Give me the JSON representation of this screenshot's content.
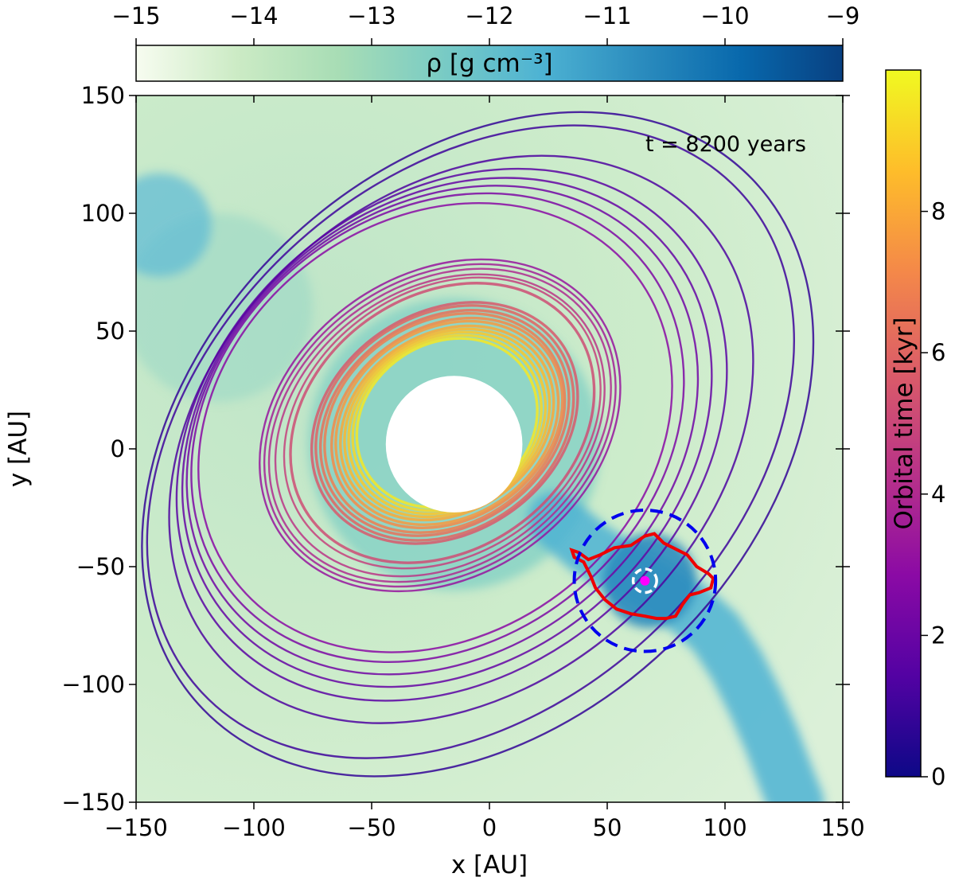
{
  "chart_data": {
    "type": "heatmap",
    "title": "",
    "xlabel": "x [AU]",
    "ylabel": "y [AU]",
    "xlim": [
      -150,
      150
    ],
    "ylim": [
      -150,
      150
    ],
    "x_ticks": [
      -150,
      -100,
      -50,
      0,
      50,
      100,
      150
    ],
    "y_ticks": [
      -150,
      -100,
      -50,
      0,
      50,
      100,
      150
    ],
    "x_tick_labels": [
      "−150",
      "−100",
      "−50",
      "0",
      "50",
      "100",
      "150"
    ],
    "y_tick_labels": [
      "−150",
      "−100",
      "−50",
      "0",
      "50",
      "100",
      "150"
    ],
    "annotation": "t = 8200 years",
    "density_colorbar": {
      "label": "ρ [g cm⁻³]",
      "range": [
        -15,
        -9
      ],
      "ticks": [
        -15,
        -14,
        -13,
        -12,
        -11,
        -10,
        -9
      ],
      "tick_labels": [
        "−15",
        "−14",
        "−13",
        "−12",
        "−11",
        "−10",
        "−9"
      ],
      "orientation": "horizontal, top",
      "colormap": [
        "#f7fcf0",
        "#ccebc5",
        "#a8ddb5",
        "#7bccc4",
        "#4eb3d3",
        "#2b8cbe",
        "#0868ac",
        "#084081"
      ]
    },
    "time_colorbar": {
      "label": "Orbital time [kyr]",
      "range": [
        0,
        10
      ],
      "ticks": [
        0,
        2,
        4,
        6,
        8
      ],
      "tick_labels": [
        "0",
        "2",
        "4",
        "6",
        "8"
      ],
      "orientation": "vertical, right",
      "colormap": [
        "#0d0887",
        "#5302a3",
        "#8b0aa5",
        "#b83289",
        "#db5c68",
        "#f48849",
        "#febd2a",
        "#f0f921"
      ]
    },
    "orbit_trajectory": {
      "color_by": "orbital time",
      "segments": [
        {
          "t_kyr": 0.8,
          "cx": -5,
          "cy": 2,
          "a": 162,
          "b": 118,
          "tilt_deg": -44
        },
        {
          "t_kyr": 1.0,
          "cx": -8,
          "cy": 3,
          "a": 156,
          "b": 112,
          "tilt_deg": -43
        },
        {
          "t_kyr": 1.3,
          "cx": -12,
          "cy": 4,
          "a": 138,
          "b": 104,
          "tilt_deg": -42
        },
        {
          "t_kyr": 1.6,
          "cx": -16,
          "cy": 6,
          "a": 128,
          "b": 100,
          "tilt_deg": -41
        },
        {
          "t_kyr": 1.9,
          "cx": -18,
          "cy": 7,
          "a": 122,
          "b": 97,
          "tilt_deg": -40
        },
        {
          "t_kyr": 2.2,
          "cx": -20,
          "cy": 8,
          "a": 117,
          "b": 94,
          "tilt_deg": -39
        },
        {
          "t_kyr": 2.5,
          "cx": -22,
          "cy": 9,
          "a": 112,
          "b": 91,
          "tilt_deg": -38
        },
        {
          "t_kyr": 2.8,
          "cx": -23,
          "cy": 9,
          "a": 107,
          "b": 88,
          "tilt_deg": -37
        },
        {
          "t_kyr": 3.2,
          "cx": -21,
          "cy": 10,
          "a": 82,
          "b": 64,
          "tilt_deg": -35
        },
        {
          "t_kyr": 3.6,
          "cx": -21,
          "cy": 10,
          "a": 80,
          "b": 62,
          "tilt_deg": -35
        },
        {
          "t_kyr": 4.0,
          "cx": -21,
          "cy": 10,
          "a": 78,
          "b": 60,
          "tilt_deg": -35
        },
        {
          "t_kyr": 4.4,
          "cx": -21,
          "cy": 10,
          "a": 75,
          "b": 58,
          "tilt_deg": -35
        },
        {
          "t_kyr": 4.8,
          "cx": -20,
          "cy": 11,
          "a": 72,
          "b": 56,
          "tilt_deg": -35
        },
        {
          "t_kyr": 5.2,
          "cx": -20,
          "cy": 11,
          "a": 69,
          "b": 54,
          "tilt_deg": -35
        },
        {
          "t_kyr": 5.6,
          "cx": -19,
          "cy": 11,
          "a": 60,
          "b": 47,
          "tilt_deg": -33
        },
        {
          "t_kyr": 6.0,
          "cx": -19,
          "cy": 11,
          "a": 58,
          "b": 46,
          "tilt_deg": -33
        },
        {
          "t_kyr": 6.4,
          "cx": -19,
          "cy": 11,
          "a": 56,
          "b": 44,
          "tilt_deg": -33
        },
        {
          "t_kyr": 6.8,
          "cx": -19,
          "cy": 11,
          "a": 54,
          "b": 43,
          "tilt_deg": -33
        },
        {
          "t_kyr": 7.2,
          "cx": -18,
          "cy": 11,
          "a": 52,
          "b": 41,
          "tilt_deg": -33
        },
        {
          "t_kyr": 7.6,
          "cx": -18,
          "cy": 11,
          "a": 50,
          "b": 40,
          "tilt_deg": -33
        },
        {
          "t_kyr": 8.0,
          "cx": -18,
          "cy": 11,
          "a": 48,
          "b": 38,
          "tilt_deg": -33
        },
        {
          "t_kyr": 8.4,
          "cx": -18,
          "cy": 11,
          "a": 46,
          "b": 37,
          "tilt_deg": -33
        },
        {
          "t_kyr": 8.8,
          "cx": -18,
          "cy": 11,
          "a": 44,
          "b": 36,
          "tilt_deg": -33
        },
        {
          "t_kyr": 9.2,
          "cx": -18,
          "cy": 11,
          "a": 42,
          "b": 35,
          "tilt_deg": -33
        },
        {
          "t_kyr": 9.6,
          "cx": -18,
          "cy": 11,
          "a": 40,
          "b": 34,
          "tilt_deg": -33
        }
      ]
    },
    "central_hole": {
      "x": -15,
      "y": 2,
      "r": 29
    },
    "companion": {
      "x": 66,
      "y": -56,
      "color": "#ff00ff"
    },
    "hill_radius_circle": {
      "x": 66,
      "y": -56,
      "r": 30,
      "color": "#0000ee",
      "style": "dashed"
    },
    "inner_circle": {
      "x": 66,
      "y": -56,
      "r": 5,
      "color": "#ffffff",
      "style": "dashed"
    },
    "density_contour": {
      "color": "#ee0000",
      "points": [
        [
          35,
          -43
        ],
        [
          38,
          -44
        ],
        [
          42,
          -47
        ],
        [
          47,
          -45
        ],
        [
          53,
          -42
        ],
        [
          60,
          -41
        ],
        [
          66,
          -37
        ],
        [
          70,
          -36
        ],
        [
          74,
          -40
        ],
        [
          78,
          -42
        ],
        [
          84,
          -45
        ],
        [
          88,
          -50
        ],
        [
          93,
          -53
        ],
        [
          95,
          -55
        ],
        [
          94,
          -59
        ],
        [
          89,
          -61
        ],
        [
          85,
          -62
        ],
        [
          82,
          -66
        ],
        [
          79,
          -71
        ],
        [
          75,
          -72
        ],
        [
          71,
          -72
        ],
        [
          66,
          -71
        ],
        [
          60,
          -70
        ],
        [
          54,
          -68
        ],
        [
          49,
          -64
        ],
        [
          45,
          -59
        ],
        [
          43,
          -54
        ],
        [
          40,
          -48
        ],
        [
          36,
          -46
        ],
        [
          35,
          -43
        ]
      ]
    },
    "spiral_arm": {
      "color": "#4eb3d3",
      "points": [
        [
          28,
          -30
        ],
        [
          42,
          -42
        ],
        [
          58,
          -52
        ],
        [
          72,
          -60
        ],
        [
          85,
          -68
        ],
        [
          96,
          -78
        ],
        [
          105,
          -92
        ],
        [
          113,
          -108
        ],
        [
          120,
          -124
        ],
        [
          126,
          -140
        ],
        [
          130,
          -150
        ]
      ]
    },
    "grid": false
  }
}
